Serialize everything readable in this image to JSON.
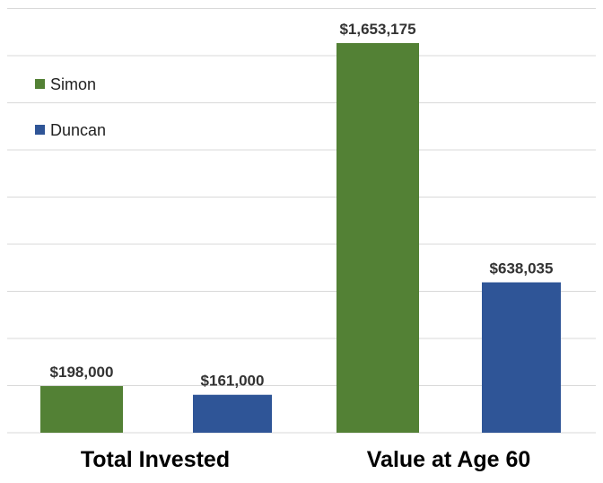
{
  "chart_data": {
    "type": "bar",
    "categories": [
      "Total Invested",
      "Value at Age 60"
    ],
    "series": [
      {
        "name": "Simon",
        "values": [
          198000,
          1653175
        ],
        "color": "#538135"
      },
      {
        "name": "Duncan",
        "values": [
          161000,
          638035
        ],
        "color": "#2F5597"
      }
    ],
    "data_labels": [
      [
        "$198,000",
        "$1,653,175"
      ],
      [
        "$161,000",
        "$638,035"
      ]
    ],
    "title": "",
    "xlabel": "",
    "ylabel": "",
    "ylim": [
      0,
      1800000
    ],
    "grid": true,
    "legend": "top-left",
    "gridline_color": "#D9D9D9"
  }
}
